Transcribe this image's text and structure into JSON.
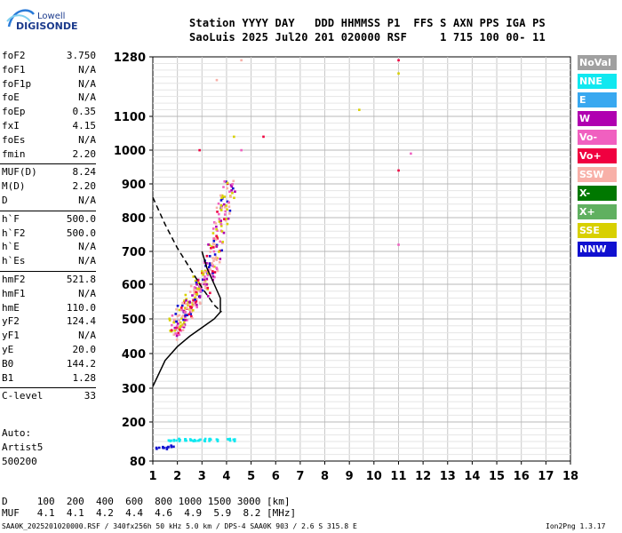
{
  "logo": {
    "line1": "Lowell",
    "line2": "DIGISONDE"
  },
  "header": {
    "line1": "Station YYYY DAY   DDD HHMMSS P1  FFS S AXN PPS IGA PS",
    "line2": "SaoLuis 2025 Jul20 201 020000 RSF     1 715 100 00- 11"
  },
  "params": [
    {
      "group": [
        {
          "name": "foF2",
          "value": "3.750"
        },
        {
          "name": "foF1",
          "value": "N/A"
        },
        {
          "name": "foF1p",
          "value": "N/A"
        },
        {
          "name": "foE",
          "value": "N/A"
        },
        {
          "name": "foEp",
          "value": "0.35"
        },
        {
          "name": "fxI",
          "value": "4.15"
        },
        {
          "name": "foEs",
          "value": "N/A"
        },
        {
          "name": "fmin",
          "value": "2.20"
        }
      ]
    },
    {
      "group": [
        {
          "name": "MUF(D)",
          "value": "8.24"
        },
        {
          "name": "M(D)",
          "value": "2.20"
        },
        {
          "name": "D",
          "value": "N/A"
        }
      ]
    },
    {
      "group": [
        {
          "name": "h`F",
          "value": "500.0"
        },
        {
          "name": "h`F2",
          "value": "500.0"
        },
        {
          "name": "h`E",
          "value": "N/A"
        },
        {
          "name": "h`Es",
          "value": "N/A"
        }
      ]
    },
    {
      "group": [
        {
          "name": "hmF2",
          "value": "521.8"
        },
        {
          "name": "hmF1",
          "value": "N/A"
        },
        {
          "name": "hmE",
          "value": "110.0"
        },
        {
          "name": "yF2",
          "value": "124.4"
        },
        {
          "name": "yF1",
          "value": "N/A"
        },
        {
          "name": "yE",
          "value": "20.0"
        },
        {
          "name": "B0",
          "value": "144.2"
        },
        {
          "name": "B1",
          "value": "1.28"
        }
      ]
    },
    {
      "group": [
        {
          "name": "C-level",
          "value": "33"
        }
      ]
    }
  ],
  "auto": {
    "line1": "Auto:",
    "line2": "Artist5",
    "line3": "500200"
  },
  "legend": [
    {
      "label": "NoVal",
      "color": "#a0a0a0"
    },
    {
      "label": "NNE",
      "color": "#10e8f0"
    },
    {
      "label": "E",
      "color": "#38a8f0"
    },
    {
      "label": "W",
      "color": "#b000b0"
    },
    {
      "label": "Vo-",
      "color": "#f060c0"
    },
    {
      "label": "Vo+",
      "color": "#f00040"
    },
    {
      "label": "SSW",
      "color": "#f8b0a8"
    },
    {
      "label": "X-",
      "color": "#007800"
    },
    {
      "label": "X+",
      "color": "#60b060"
    },
    {
      "label": "SSE",
      "color": "#d8d000"
    },
    {
      "label": "NNW",
      "color": "#1010d0"
    }
  ],
  "footer": {
    "d_line": "D     100  200  400  600  800 1000 1500 3000 [km]",
    "muf_line": "MUF   4.1  4.1  4.2  4.4  4.6  4.9  5.9  8.2 [MHz]",
    "file_line": "SAA0K_2025201020000.RSF / 340fx256h 50 kHz 5.0 km / DPS-4 SAA0K 903 / 2.6 S 315.8 E",
    "version": "Ion2Png 1.3.17"
  },
  "chart_data": {
    "type": "scatter",
    "title": "",
    "xlabel": "",
    "ylabel": "",
    "xlim": [
      1,
      18
    ],
    "ylim": [
      80,
      1280
    ],
    "x_ticks": [
      1,
      2,
      3,
      4,
      5,
      6,
      7,
      8,
      9,
      10,
      11,
      12,
      13,
      14,
      15,
      16,
      17,
      18
    ],
    "y_ticks": [
      80,
      200,
      300,
      400,
      500,
      600,
      700,
      800,
      900,
      1000,
      1100,
      1280
    ],
    "y_scale": "nonlinear",
    "grid": true,
    "series": [
      {
        "name": "F2 trace",
        "color_key": "mixed",
        "points": [
          [
            1.9,
            470
          ],
          [
            2.0,
            480
          ],
          [
            2.1,
            500
          ],
          [
            2.2,
            510
          ],
          [
            2.3,
            520
          ],
          [
            2.4,
            530
          ],
          [
            2.5,
            540
          ],
          [
            2.6,
            545
          ],
          [
            2.7,
            560
          ],
          [
            2.8,
            575
          ],
          [
            2.9,
            590
          ],
          [
            3.0,
            600
          ],
          [
            3.1,
            610
          ],
          [
            3.2,
            630
          ],
          [
            3.3,
            650
          ],
          [
            3.4,
            670
          ],
          [
            3.5,
            700
          ],
          [
            3.6,
            730
          ],
          [
            3.7,
            760
          ],
          [
            3.8,
            800
          ],
          [
            3.9,
            830
          ],
          [
            4.0,
            860
          ],
          [
            4.1,
            880
          ]
        ]
      },
      {
        "name": "E/Es low echoes",
        "color_key": "NNE",
        "points": [
          [
            1.7,
            145
          ],
          [
            1.9,
            145
          ],
          [
            2.1,
            145
          ],
          [
            2.3,
            145
          ],
          [
            2.5,
            145
          ],
          [
            2.7,
            145
          ],
          [
            2.9,
            145
          ],
          [
            3.1,
            145
          ],
          [
            3.3,
            145
          ],
          [
            3.6,
            145
          ],
          [
            4.1,
            145
          ],
          [
            4.3,
            145
          ]
        ]
      },
      {
        "name": "Low NNW echoes",
        "color_key": "NNW",
        "points": [
          [
            1.2,
            120
          ],
          [
            1.4,
            120
          ],
          [
            1.6,
            120
          ],
          [
            1.8,
            125
          ]
        ]
      },
      {
        "name": "Scattered",
        "color_key": "mixed",
        "points": [
          [
            2.9,
            1000
          ],
          [
            3.6,
            1210
          ],
          [
            4.3,
            1040
          ],
          [
            4.6,
            1000
          ],
          [
            5.5,
            1040
          ],
          [
            9.4,
            1120
          ],
          [
            11.0,
            1270
          ],
          [
            11.0,
            1230
          ],
          [
            11.5,
            990
          ],
          [
            11.0,
            940
          ],
          [
            11.0,
            720
          ],
          [
            4.6,
            1270
          ]
        ]
      }
    ],
    "profile_line": [
      [
        1.0,
        305
      ],
      [
        1.5,
        380
      ],
      [
        2.0,
        420
      ],
      [
        2.5,
        450
      ],
      [
        3.0,
        475
      ],
      [
        3.5,
        500
      ],
      [
        3.75,
        520
      ],
      [
        3.75,
        560
      ],
      [
        3.5,
        600
      ],
      [
        3.2,
        650
      ],
      [
        3.0,
        700
      ]
    ],
    "dashed_line": [
      [
        1.0,
        860
      ],
      [
        1.5,
        780
      ],
      [
        2.0,
        710
      ],
      [
        2.5,
        650
      ],
      [
        3.0,
        590
      ],
      [
        3.5,
        540
      ],
      [
        3.8,
        520
      ]
    ]
  }
}
